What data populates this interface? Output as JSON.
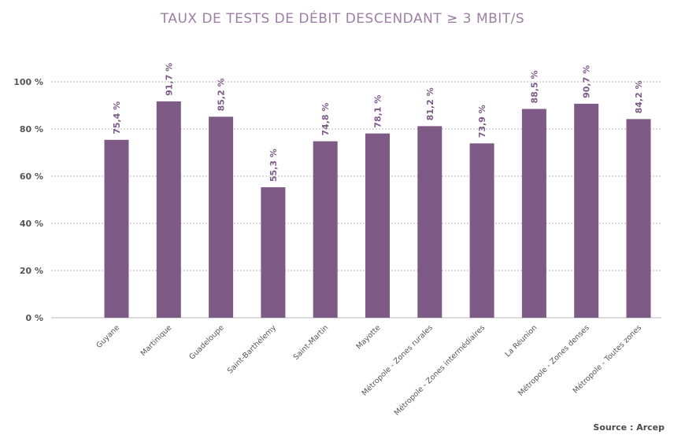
{
  "chart_data": {
    "type": "bar",
    "title": "TAUX DE TESTS DE DÉBIT DESCENDANT ≥ 3 MBIT/S",
    "xlabel": "",
    "ylabel": "",
    "categories": [
      "Guyane",
      "Martinique",
      "Guadeloupe",
      "Saint-Barthélemy",
      "Saint-Martin",
      "Mayotte",
      "Métropole - Zones rurales",
      "Métropole - Zones intermédiaires",
      "La Réunion",
      "Métropole - Zones denses",
      "Métropole - Toutes zones"
    ],
    "values": [
      75.4,
      91.7,
      85.2,
      55.3,
      74.8,
      78.1,
      81.2,
      73.9,
      88.5,
      90.7,
      84.2
    ],
    "data_labels": [
      "75,4 %",
      "91,7 %",
      "85,2 %",
      "55,3 %",
      "74,8 %",
      "78,1 %",
      "81,2 %",
      "73,9 %",
      "88,5 %",
      "90,7 %",
      "84,2 %"
    ],
    "ylim": [
      0,
      100
    ],
    "yticks": [
      0,
      20,
      40,
      60,
      80,
      100
    ],
    "ytick_labels": [
      "0 %",
      "20 %",
      "40 %",
      "60 %",
      "80 %",
      "100 %"
    ],
    "grid": true,
    "bar_color": "#7e5a86",
    "legend": "none"
  },
  "source": "Source : Arcep"
}
